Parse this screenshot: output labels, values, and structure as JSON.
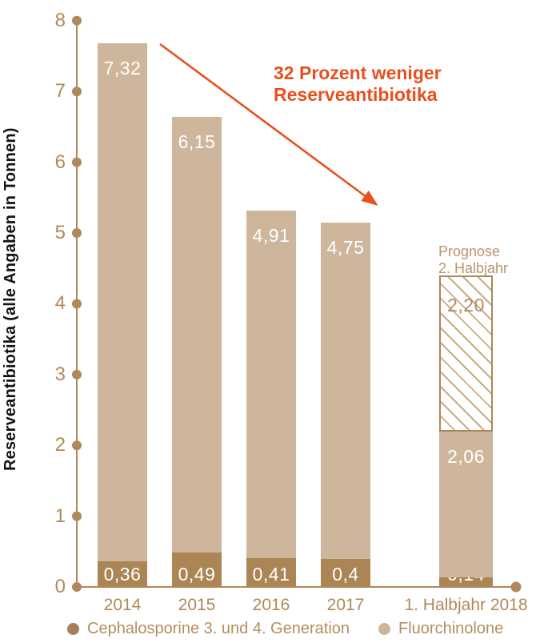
{
  "colors": {
    "axis": "#b1885a",
    "tick_label": "#b1885a",
    "bar_dark": "#ac8555",
    "bar_light": "#cdb69c",
    "hatch_line": "#c9ac87",
    "hatch_border": "#ad8758",
    "annotation": "#e8501e",
    "prognose_text": "#b9946f",
    "hatch_value_text": "#b28c63",
    "segment_value_text": "#ffffff",
    "y_title_text": "#161412",
    "legend_text": "#b48e60"
  },
  "annotation": {
    "line1": "32 Prozent weniger",
    "line2": "Reserveantibiotika"
  },
  "prognose": {
    "line1": "Prognose",
    "line2": "2. Halbjahr"
  },
  "legend": [
    {
      "label": "Cephalosporine 3. und 4. Generation",
      "color": "#a5805a"
    },
    {
      "label": "Fluorchinolone",
      "color": "#ccb59b"
    }
  ],
  "chart_data": {
    "type": "bar",
    "stacked": true,
    "title": "",
    "ylabel": "Reserveantibiotika (alle Angaben in Tonnen)",
    "xlabel": "",
    "ylim": [
      0,
      8
    ],
    "yticks": [
      "0",
      "1",
      "2",
      "3",
      "4",
      "5",
      "6",
      "7",
      "8"
    ],
    "grid": false,
    "legend_position": "bottom",
    "categories": [
      "2014",
      "2015",
      "2016",
      "2017",
      "1. Halbjahr 2018"
    ],
    "series": [
      {
        "name": "Cephalosporine 3. und 4. Generation",
        "style": "solid-dark",
        "values": [
          0.36,
          0.49,
          0.41,
          0.4,
          0.14
        ],
        "labels": [
          "0,36",
          "0,49",
          "0,41",
          "0,4",
          "0,14"
        ]
      },
      {
        "name": "Fluorchinolone",
        "style": "solid-light",
        "values": [
          7.32,
          6.15,
          4.91,
          4.75,
          2.06
        ],
        "labels": [
          "7,32",
          "6,15",
          "4,91",
          "4,75",
          "2,06"
        ]
      },
      {
        "name": "Prognose 2. Halbjahr",
        "style": "hatched",
        "values": [
          null,
          null,
          null,
          null,
          2.2
        ],
        "labels": [
          null,
          null,
          null,
          null,
          "2,20"
        ]
      }
    ],
    "annotation_text": "32 Prozent weniger Reserveantibiotika"
  }
}
